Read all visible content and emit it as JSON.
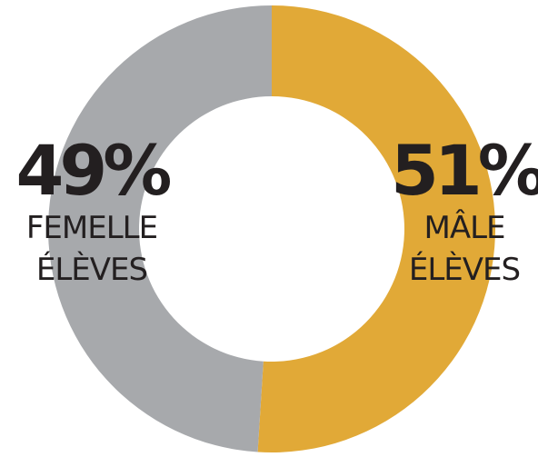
{
  "chart_data": {
    "type": "pie",
    "donut": true,
    "slices": [
      {
        "key": "male",
        "value": 51,
        "percent_label": "51%",
        "line1": "MÂLE",
        "line2": "ÉLÈVES",
        "color": "#e1a937"
      },
      {
        "key": "female",
        "value": 49,
        "percent_label": "49%",
        "line1": "FEMELLE",
        "line2": "ÉLÈVES",
        "color": "#a7a9ac"
      }
    ],
    "text_color": "#231f20",
    "legend": "none"
  }
}
